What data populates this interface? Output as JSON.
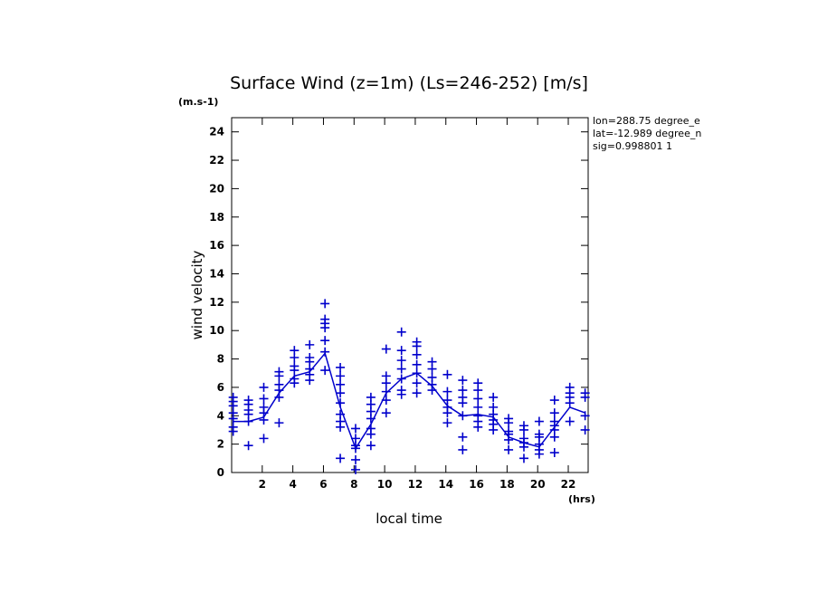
{
  "chart_data": {
    "type": "scatter",
    "title": "Surface Wind (z=1m) (Ls=246-252) [m/s]",
    "units_label": "(m.s-1)",
    "xlabel": "local time",
    "x_units_label": "(hrs)",
    "ylabel": "wind velocity",
    "xlim": [
      0,
      23.3
    ],
    "ylim": [
      0,
      25
    ],
    "xticks": [
      2,
      4,
      6,
      8,
      10,
      12,
      14,
      16,
      18,
      20,
      22
    ],
    "yticks": [
      0,
      2,
      4,
      6,
      8,
      10,
      12,
      14,
      16,
      18,
      20,
      22,
      24
    ],
    "info_lines": [
      "lon=288.75 degree_e",
      "lat=-12.989 degree_n",
      "sig=0.998801 1"
    ],
    "color": "#0000cc",
    "scatter": [
      {
        "x": 0.1,
        "values": [
          2.9,
          3.2,
          3.8,
          4.2,
          4.7,
          5.0,
          5.3
        ]
      },
      {
        "x": 1.1,
        "values": [
          1.9,
          3.6,
          4.1,
          4.4,
          4.8,
          5.1
        ]
      },
      {
        "x": 2.1,
        "values": [
          2.4,
          3.7,
          4.2,
          4.6,
          5.2,
          6.0
        ]
      },
      {
        "x": 3.1,
        "values": [
          3.5,
          5.3,
          5.8,
          6.2,
          6.8,
          7.1
        ]
      },
      {
        "x": 4.1,
        "values": [
          6.3,
          6.6,
          7.2,
          7.5,
          8.1,
          8.6
        ]
      },
      {
        "x": 5.1,
        "values": [
          6.5,
          6.9,
          7.3,
          7.8,
          8.1,
          9.0
        ]
      },
      {
        "x": 6.1,
        "values": [
          7.2,
          8.5,
          9.3,
          10.2,
          10.5,
          10.8,
          11.9
        ]
      },
      {
        "x": 7.1,
        "values": [
          1.0,
          3.2,
          3.6,
          4.1,
          4.9,
          5.6,
          6.2,
          6.8,
          7.4
        ]
      },
      {
        "x": 8.1,
        "values": [
          0.2,
          0.9,
          1.7,
          1.9,
          2.4,
          3.1
        ]
      },
      {
        "x": 9.1,
        "values": [
          1.9,
          2.7,
          3.1,
          3.8,
          4.3,
          4.8,
          5.3
        ]
      },
      {
        "x": 10.1,
        "values": [
          4.2,
          5.1,
          5.7,
          6.3,
          6.8,
          8.7
        ]
      },
      {
        "x": 11.1,
        "values": [
          5.5,
          5.8,
          6.6,
          7.3,
          7.9,
          8.6,
          9.9
        ]
      },
      {
        "x": 12.1,
        "values": [
          5.6,
          6.3,
          7.0,
          7.6,
          8.3,
          8.9,
          9.2
        ]
      },
      {
        "x": 13.1,
        "values": [
          5.8,
          6.2,
          6.7,
          7.3,
          7.8
        ]
      },
      {
        "x": 14.1,
        "values": [
          3.5,
          4.2,
          4.6,
          5.1,
          5.7,
          6.9
        ]
      },
      {
        "x": 15.1,
        "values": [
          1.6,
          2.5,
          4.0,
          4.9,
          5.3,
          5.8,
          6.5
        ]
      },
      {
        "x": 16.1,
        "values": [
          3.2,
          3.6,
          4.0,
          4.6,
          5.2,
          5.8,
          6.3
        ]
      },
      {
        "x": 17.1,
        "values": [
          3.0,
          3.4,
          3.7,
          4.1,
          4.6,
          5.3
        ]
      },
      {
        "x": 18.1,
        "values": [
          1.6,
          2.3,
          2.7,
          2.9,
          3.5,
          3.8
        ]
      },
      {
        "x": 19.1,
        "values": [
          1.0,
          1.8,
          2.1,
          2.4,
          3.0,
          3.3
        ]
      },
      {
        "x": 20.1,
        "values": [
          1.3,
          1.6,
          2.0,
          2.5,
          2.7,
          3.6
        ]
      },
      {
        "x": 21.1,
        "values": [
          1.4,
          2.5,
          3.0,
          3.3,
          3.6,
          4.2,
          5.1
        ]
      },
      {
        "x": 22.1,
        "values": [
          3.6,
          4.9,
          5.3,
          5.6,
          6.0
        ]
      },
      {
        "x": 23.1,
        "values": [
          3.0,
          4.0,
          5.3,
          5.6
        ]
      }
    ],
    "mean_line": {
      "x": [
        0.1,
        1.1,
        2.1,
        3.1,
        4.1,
        5.1,
        6.1,
        7.1,
        8.1,
        9.1,
        10.1,
        11.1,
        12.1,
        13.1,
        14.1,
        15.1,
        16.1,
        17.1,
        18.1,
        19.1,
        20.1,
        21.1,
        22.1,
        23.1
      ],
      "values": [
        3.6,
        3.6,
        3.9,
        5.6,
        6.8,
        7.1,
        8.4,
        4.6,
        1.7,
        3.4,
        5.6,
        6.6,
        7.0,
        6.1,
        4.7,
        4.0,
        4.1,
        3.9,
        2.5,
        2.1,
        1.8,
        3.2,
        4.6,
        4.2
      ]
    }
  }
}
